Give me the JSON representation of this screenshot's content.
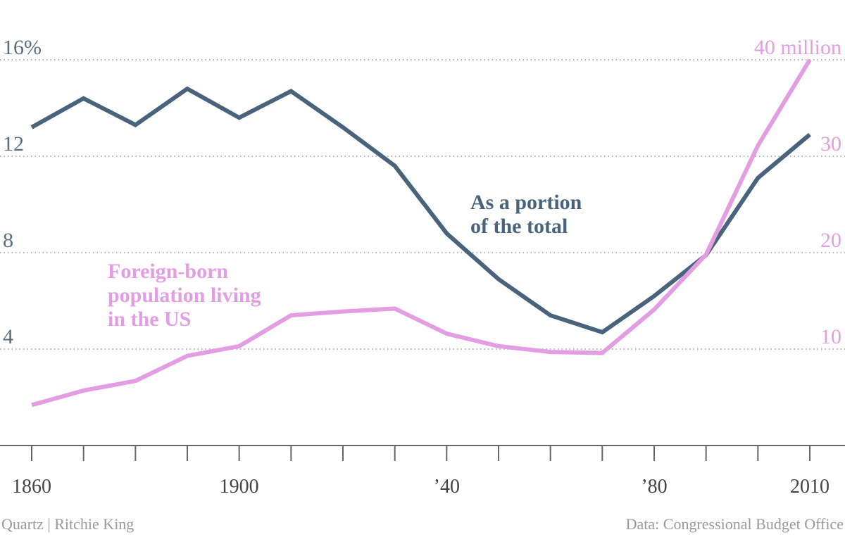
{
  "chart_data": {
    "type": "line",
    "x": [
      1860,
      1870,
      1880,
      1890,
      1900,
      1910,
      1920,
      1930,
      1940,
      1950,
      1960,
      1970,
      1980,
      1990,
      2000,
      2010
    ],
    "xlim": [
      1860,
      2010
    ],
    "xticks": [
      1860,
      1900,
      {
        "value": 1940,
        "label": "’40"
      },
      {
        "value": 1980,
        "label": "’80"
      },
      2010
    ],
    "ylim": [
      0,
      16
    ],
    "yticks": [
      4,
      8,
      12,
      {
        "value": 16,
        "label": "16%"
      }
    ],
    "y2lim": [
      0,
      40
    ],
    "y2ticks": [
      10,
      20,
      30,
      {
        "value": 40,
        "label": "40 million"
      }
    ],
    "grid": true,
    "series": [
      {
        "name": "As a portion of the total",
        "color": "#4a637d",
        "values": [
          13.2,
          14.4,
          13.3,
          14.8,
          13.6,
          14.7,
          13.2,
          11.6,
          8.8,
          6.9,
          5.4,
          4.7,
          6.2,
          7.9,
          11.1,
          12.9
        ]
      },
      {
        "name": "Foreign-born population living in the US",
        "color": "#e39de3",
        "axis": "y2",
        "values": [
          4.2,
          5.7,
          6.7,
          9.3,
          10.3,
          13.5,
          13.9,
          14.2,
          11.6,
          10.3,
          9.7,
          9.6,
          14.1,
          19.8,
          31.1,
          40
        ]
      }
    ],
    "annotations": [
      {
        "lines": [
          "As a portion",
          "of the total"
        ]
      },
      {
        "lines": [
          "Foreign-born",
          "population living",
          "in the US"
        ]
      }
    ],
    "credit": "Quartz | Ritchie King",
    "source": "Data: Congressional Budget Office"
  }
}
